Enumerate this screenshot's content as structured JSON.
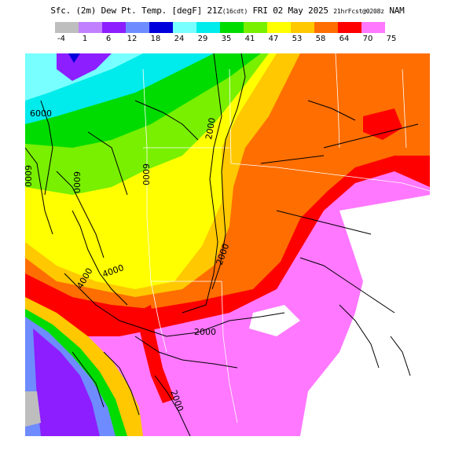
{
  "header": {
    "title_main": "Sfc. (2m) Dew Pt. Temp. [degF] 21Z",
    "title_cdt": "(16cdt)",
    "title_date": " FRI 02 May 2025 ",
    "title_fcst": "21hrFcst@0208z",
    "title_model": " NAM"
  },
  "legend": {
    "units": "degF",
    "ticks": [
      "-4",
      "1",
      "6",
      "12",
      "18",
      "24",
      "29",
      "35",
      "41",
      "47",
      "53",
      "58",
      "64",
      "70",
      "75"
    ],
    "colors": [
      "#bebebe",
      "#c080ff",
      "#8c1eff",
      "#6e8cff",
      "#0000dc",
      "#78ffff",
      "#00ebeb",
      "#00dc00",
      "#78f000",
      "#ffff00",
      "#ffc800",
      "#ff6e00",
      "#ff0000",
      "#ff78ff"
    ]
  },
  "map": {
    "contour_labels": [
      {
        "id": "c6000a",
        "text": "6000"
      },
      {
        "id": "c6000b",
        "text": "6000"
      },
      {
        "id": "c6000c",
        "text": "6000"
      },
      {
        "id": "c6000d",
        "text": "6000"
      },
      {
        "id": "c2000a",
        "text": "2000"
      },
      {
        "id": "c2000b",
        "text": "2000"
      },
      {
        "id": "c2000c",
        "text": "2000"
      },
      {
        "id": "c2000d",
        "text": "2000"
      },
      {
        "id": "c4000a",
        "text": "4000"
      },
      {
        "id": "c4000b",
        "text": "4000"
      }
    ]
  }
}
